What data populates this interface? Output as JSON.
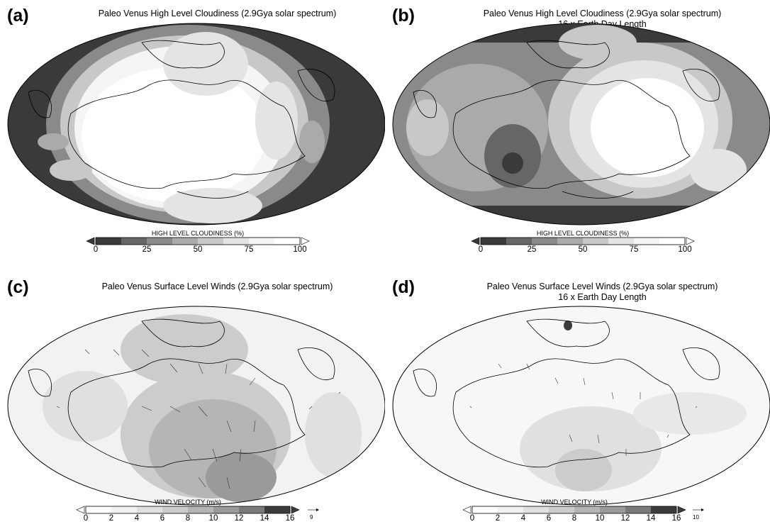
{
  "panels": [
    {
      "letter": "(a)",
      "title": "Paleo Venus High Level Cloudiness (2.9Gya solar spectrum)",
      "subtitle": "",
      "colorbar_label": "HIGH LEVEL CLOUDINESS (%)",
      "ticks": [
        "0",
        "25",
        "50",
        "75",
        "100"
      ],
      "ref_vector": "",
      "kind": "cloud"
    },
    {
      "letter": "(b)",
      "title": "Paleo Venus High Level Cloudiness (2.9Gya solar spectrum)",
      "subtitle": "16 x Earth Day Length",
      "colorbar_label": "HIGH LEVEL CLOUDINESS (%)",
      "ticks": [
        "0",
        "25",
        "50",
        "75",
        "100"
      ],
      "ref_vector": "",
      "kind": "cloud"
    },
    {
      "letter": "(c)",
      "title": "Paleo Venus Surface Level Winds (2.9Gya solar spectrum)",
      "subtitle": "",
      "colorbar_label": "WIND VELOCITY (m/s)",
      "ticks": [
        "0",
        "2",
        "4",
        "6",
        "8",
        "10",
        "12",
        "14",
        "16"
      ],
      "ref_vector": "9",
      "kind": "wind"
    },
    {
      "letter": "(d)",
      "title": "Paleo Venus Surface Level Winds (2.9Gya solar spectrum)",
      "subtitle": "16 x Earth Day Length",
      "colorbar_label": "WIND VELOCITY (m/s)",
      "ticks": [
        "0",
        "2",
        "4",
        "6",
        "8",
        "10",
        "12",
        "14",
        "16"
      ],
      "ref_vector": "10",
      "kind": "wind"
    }
  ],
  "colors": {
    "cloud_scale": [
      "#3a3a3a",
      "#666666",
      "#8a8a8a",
      "#aaaaaa",
      "#c8c8c8",
      "#e4e4e4",
      "#f5f5f5",
      "#ffffff"
    ],
    "wind_scale": [
      "#ffffff",
      "#f2f2f2",
      "#e0e0e0",
      "#cccccc",
      "#b5b5b5",
      "#9a9a9a",
      "#7a7a7a",
      "#3c3c3c"
    ]
  }
}
